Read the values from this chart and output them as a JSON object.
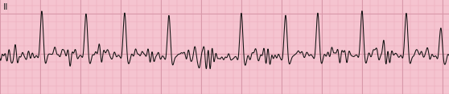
{
  "background_color": "#f5c4d0",
  "grid_major_color": "#d898aa",
  "grid_minor_color": "#eaaabb",
  "line_color": "#111111",
  "lead_label": "II",
  "label_fontsize": 8,
  "figsize": [
    5.58,
    1.17
  ],
  "dpi": 100,
  "ylim": [
    -1.0,
    2.2
  ],
  "xlim": [
    0,
    558
  ],
  "qrs_positions": [
    52,
    107,
    155,
    210,
    300,
    355,
    395,
    450,
    505,
    548
  ],
  "qrs_heights": [
    1.55,
    1.45,
    1.5,
    1.45,
    1.55,
    1.45,
    1.5,
    1.55,
    1.48,
    1.0
  ],
  "baseline_y": 0.0
}
